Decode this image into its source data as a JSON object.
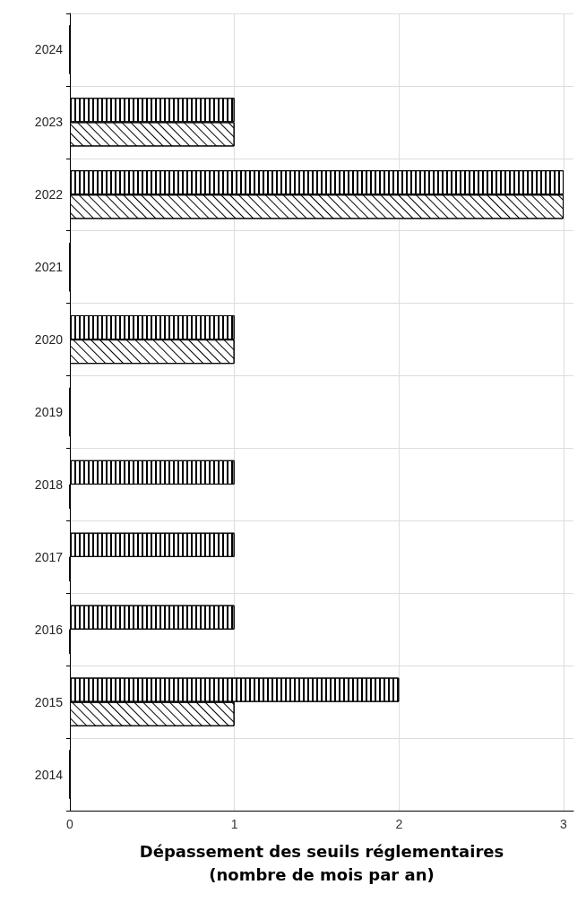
{
  "chart_data": {
    "type": "bar",
    "orientation": "horizontal",
    "xlabel": "Dépassement des seuils réglementaires\n(nombre de mois par an)",
    "categories": [
      "2024",
      "2023",
      "2022",
      "2021",
      "2020",
      "2019",
      "2018",
      "2017",
      "2016",
      "2015",
      "2014"
    ],
    "series": [
      {
        "color": "#000000",
        "values": [
          0,
          1,
          3,
          0,
          1,
          0,
          1,
          1,
          1,
          2,
          0
        ]
      },
      {
        "color": "#000000",
        "values": [
          0,
          1,
          3,
          0,
          1,
          0,
          0,
          0,
          0,
          1,
          0
        ]
      }
    ],
    "xlim": [
      0,
      3.06
    ],
    "xticks": [
      0,
      1,
      2,
      3
    ],
    "grid": true
  }
}
